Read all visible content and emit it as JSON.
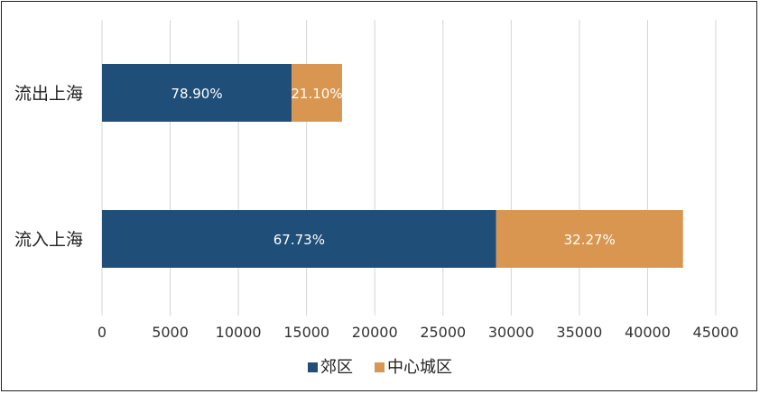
{
  "chart_data": {
    "type": "bar",
    "orientation": "horizontal",
    "stacked": true,
    "categories": [
      "流出上海",
      "流入上海"
    ],
    "series": [
      {
        "name": "郊区",
        "color": "#1f4e79",
        "values": [
          13900,
          28900
        ],
        "labels": [
          "78.90%",
          "67.73%"
        ]
      },
      {
        "name": "中心城区",
        "color": "#d99650",
        "values": [
          3700,
          13700
        ],
        "labels": [
          "21.10%",
          "32.27%"
        ]
      }
    ],
    "xlim": [
      0,
      45000
    ],
    "xticks": [
      0,
      5000,
      10000,
      15000,
      20000,
      25000,
      30000,
      35000,
      40000,
      45000
    ],
    "grid": true,
    "legend": "bottom"
  }
}
